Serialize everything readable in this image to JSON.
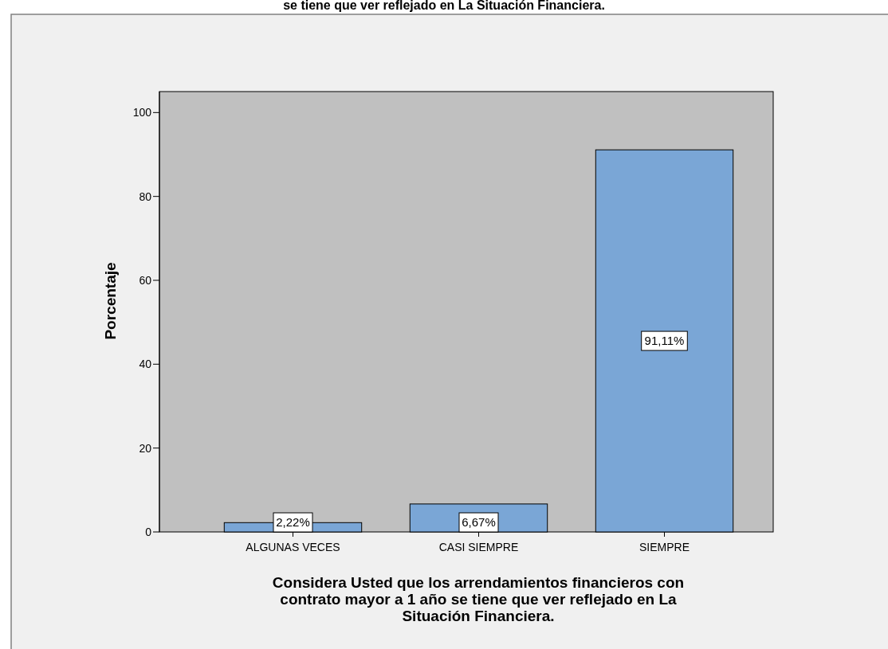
{
  "chart_data": {
    "type": "bar",
    "title": "se tiene que ver reflejado en La Situación Financiera.",
    "xlabel": "Considera Usted que los arrendamientos financieros con contrato mayor a 1 año se tiene que ver reflejado en La Situación Financiera.",
    "ylabel": "Porcentaje",
    "categories": [
      "ALGUNAS VECES",
      "CASI SIEMPRE",
      "SIEMPRE"
    ],
    "values": [
      2.22,
      6.67,
      91.11
    ],
    "value_labels": [
      "2,22%",
      "6,67%",
      "91,11%"
    ],
    "color": "#7aa6d6",
    "ylim": [
      0,
      105
    ],
    "yticks": [
      0,
      20,
      40,
      60,
      80,
      100
    ],
    "grid": false
  }
}
